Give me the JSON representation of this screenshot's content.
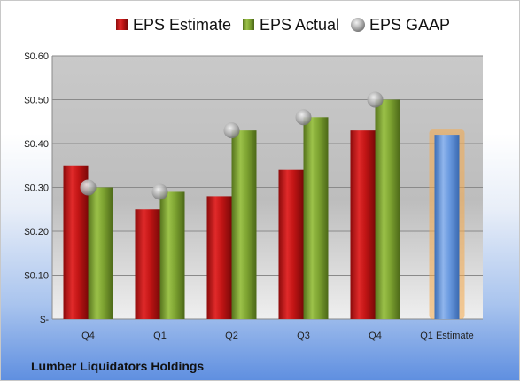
{
  "chart_data": {
    "type": "bar",
    "title": "",
    "xlabel": "",
    "ylabel": "",
    "categories": [
      "Q4",
      "Q1",
      "Q2",
      "Q3",
      "Q4",
      "Q1 Estimate"
    ],
    "series": [
      {
        "name": "EPS Estimate",
        "type": "bar",
        "color": "#c81414",
        "values": [
          0.35,
          0.25,
          0.28,
          0.34,
          0.43,
          null
        ]
      },
      {
        "name": "EPS Actual",
        "type": "bar",
        "color": "#7aa02c",
        "values": [
          0.3,
          0.29,
          0.43,
          0.46,
          0.5,
          null
        ]
      },
      {
        "name": "EPS GAAP",
        "type": "marker",
        "color": "#a0a0a0",
        "values": [
          0.3,
          0.29,
          0.43,
          0.46,
          0.5,
          null
        ]
      },
      {
        "name": "",
        "type": "bar",
        "color": "#5b8fd6",
        "highlight": "#f5a94a",
        "values": [
          null,
          null,
          null,
          null,
          null,
          0.42
        ]
      }
    ],
    "ylim": [
      0,
      0.6
    ],
    "yticks": [
      0,
      0.1,
      0.2,
      0.3,
      0.4,
      0.5,
      0.6
    ],
    "ytick_labels": [
      "$-",
      "$0.10",
      "$0.20",
      "$0.30",
      "$0.40",
      "$0.50",
      "$0.60"
    ],
    "grid": true,
    "legend": "top"
  },
  "footer": {
    "company": "Lumber Liquidators Holdings"
  }
}
